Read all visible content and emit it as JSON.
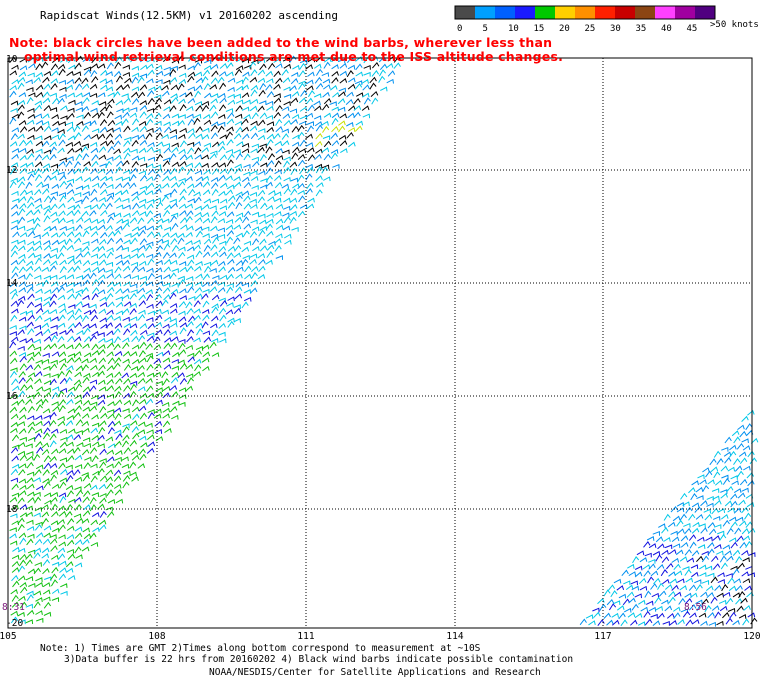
{
  "title": "Rapidscat Winds(12.5KM) v1 20160202 ascending",
  "note_line1": "Note: black circles have been added to the wind barbs, wherever less than",
  "note_line2": "optimal wind retrieval conditions are met due to the ISS altitude changes.",
  "legend": {
    "unit_label": ">50 knots",
    "ticks": [
      "0",
      "5",
      "10",
      "15",
      "20",
      "25",
      "30",
      "35",
      "40",
      "45"
    ],
    "colors": [
      "#4a4a4a",
      "#00a0ff",
      "#0060ff",
      "#1a1aff",
      "#00c800",
      "#ffd000",
      "#ff9000",
      "#ff2000",
      "#c80000",
      "#8b4513",
      "#ff40ff",
      "#a000a0",
      "#500080"
    ]
  },
  "map": {
    "lon_labels": [
      "105",
      "108",
      "111",
      "114",
      "117",
      "120"
    ],
    "lat_labels": [
      "10",
      "12",
      "14",
      "16",
      "18",
      "-20"
    ],
    "time_labels": [
      "8:31",
      "8:56"
    ],
    "barb_colors": {
      "light": "#00c8e8",
      "med": "#0090f0",
      "dark": "#1010e0",
      "green": "#10c010",
      "black": "#000000",
      "yellow": "#c8e000"
    }
  },
  "footer": {
    "line1": "Note: 1) Times are GMT 2)Times along bottom correspond to measurement at ~10S",
    "line2": "3)Data buffer is 22 hrs from 20160202 4) Black wind barbs indicate possible contamination",
    "line3": "NOAA/NESDIS/Center for Satellite Applications and Research"
  }
}
